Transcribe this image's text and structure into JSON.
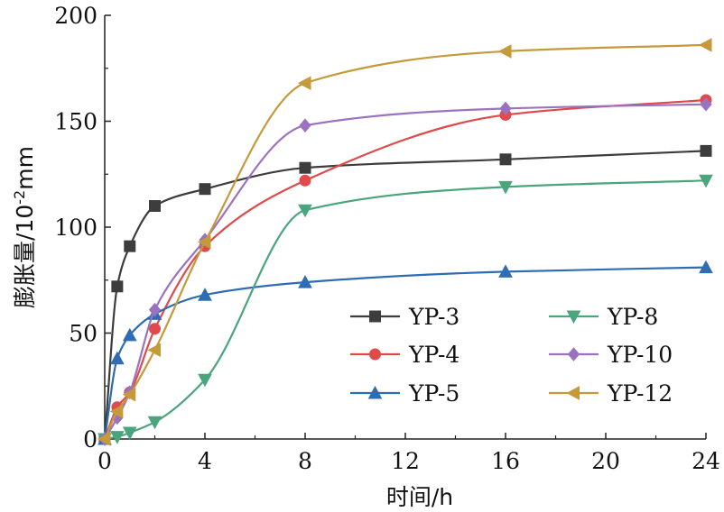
{
  "chart_data": {
    "type": "line",
    "title": "",
    "xlabel": "时间/h",
    "ylabel_main": "膨胀量/10",
    "ylabel_sup": "-2",
    "ylabel_unit": "mm",
    "xlim": [
      0,
      24
    ],
    "ylim": [
      0,
      200
    ],
    "xticks": [
      0,
      4,
      8,
      12,
      16,
      20,
      24
    ],
    "yticks": [
      0,
      50,
      100,
      150,
      200
    ],
    "grid": false,
    "legend_position": "bottom-right",
    "series": [
      {
        "name": "YP-3",
        "color": "#3d3d3d",
        "marker": "square",
        "x": [
          0,
          0.5,
          1,
          2,
          4,
          8,
          16,
          24
        ],
        "y": [
          0,
          72,
          91,
          110,
          118,
          128,
          132,
          136
        ]
      },
      {
        "name": "YP-4",
        "color": "#e04a4a",
        "marker": "circle",
        "x": [
          0,
          0.5,
          1,
          2,
          4,
          8,
          16,
          24
        ],
        "y": [
          0,
          15,
          22,
          52,
          91,
          122,
          153,
          160
        ]
      },
      {
        "name": "YP-5",
        "color": "#2e6db4",
        "marker": "triangle-up",
        "x": [
          0,
          0.5,
          1,
          2,
          4,
          8,
          16,
          24
        ],
        "y": [
          0,
          38,
          49,
          59,
          68,
          74,
          79,
          81
        ]
      },
      {
        "name": "YP-8",
        "color": "#4aa57d",
        "marker": "triangle-down",
        "x": [
          0,
          0.5,
          1,
          2,
          4,
          8,
          16,
          24
        ],
        "y": [
          0,
          1,
          3,
          8,
          28,
          108,
          119,
          122
        ]
      },
      {
        "name": "YP-10",
        "color": "#9b72c0",
        "marker": "diamond",
        "x": [
          0,
          0.5,
          1,
          2,
          4,
          8,
          16,
          24
        ],
        "y": [
          0,
          10,
          22,
          61,
          94,
          148,
          156,
          158
        ]
      },
      {
        "name": "YP-12",
        "color": "#c49a3a",
        "marker": "triangle-left",
        "x": [
          0,
          0.5,
          1,
          2,
          4,
          8,
          16,
          24
        ],
        "y": [
          0,
          13,
          21,
          42,
          93,
          168,
          183,
          186
        ]
      }
    ]
  }
}
